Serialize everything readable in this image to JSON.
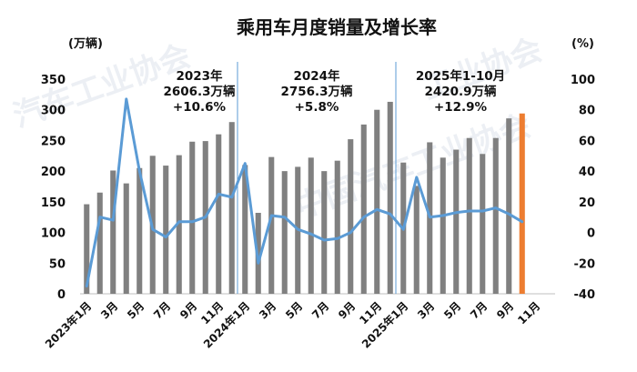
{
  "chart_data": {
    "type": "bar+line",
    "title": "乘用车月度销量及增长率",
    "y_left_unit": "(万辆)",
    "y_right_unit": "(%)",
    "y_left_ticks": [
      0,
      50,
      100,
      150,
      200,
      250,
      300,
      350
    ],
    "y_right_ticks": [
      -40,
      -20,
      0,
      20,
      40,
      60,
      80,
      100
    ],
    "ylim_left": [
      0,
      350
    ],
    "ylim_right": [
      -40,
      100
    ],
    "x_tick_labels": [
      "2023年1月",
      "3月",
      "5月",
      "7月",
      "9月",
      "11月",
      "2024年1月",
      "3月",
      "5月",
      "7月",
      "9月",
      "11月",
      "2025年1月",
      "3月",
      "5月",
      "7月",
      "9月",
      "11月"
    ],
    "months": 36,
    "bar_color": "#808080",
    "highlight_color": "#ed7d31",
    "line_color": "#5b9bd5",
    "divider_color": "#5b9bd5",
    "sales": [
      146,
      165,
      201,
      180,
      205,
      225,
      209,
      226,
      248,
      249,
      260,
      280,
      210,
      132,
      223,
      200,
      207,
      222,
      200,
      217,
      252,
      276,
      300,
      313,
      214,
      176,
      247,
      222,
      235,
      254,
      228,
      254,
      286,
      294
    ],
    "highlight_index": 33,
    "growth_rate": [
      -35,
      10,
      8,
      87,
      40,
      2,
      -3,
      7,
      7,
      10,
      25,
      23,
      45,
      -20,
      11,
      10,
      2,
      -1,
      -5,
      -4,
      0,
      10,
      15,
      12,
      2,
      36,
      10,
      11,
      13,
      14,
      14,
      16,
      12,
      7
    ],
    "annotations": [
      {
        "lines": [
          "2023年",
          "2606.3万辆",
          "+10.6%"
        ]
      },
      {
        "lines": [
          "2024年",
          "2756.3万辆",
          "+5.8%"
        ]
      },
      {
        "lines": [
          "2025年1-10月",
          "2420.9万辆",
          "+12.9%"
        ]
      }
    ]
  }
}
